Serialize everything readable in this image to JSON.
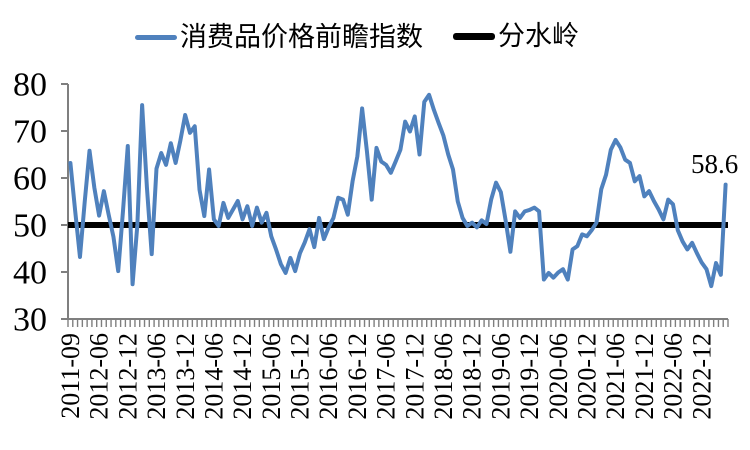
{
  "legend": {
    "series_label": "消费品价格前瞻指数",
    "reference_label": "分水岭"
  },
  "annotation": {
    "text": "58.6"
  },
  "chart_data": {
    "type": "line",
    "title": "",
    "xlabel": "",
    "ylabel": "",
    "ylim": [
      30,
      80
    ],
    "yticks": [
      30,
      40,
      50,
      60,
      70,
      80
    ],
    "grid": false,
    "legend_position": "top",
    "x_labels": [
      "2011-09",
      "2012-06",
      "2012-12",
      "2013-06",
      "2013-12",
      "2014-06",
      "2014-12",
      "2015-06",
      "2015-12",
      "2016-06",
      "2016-12",
      "2017-06",
      "2017-12",
      "2018-06",
      "2018-12",
      "2019-06",
      "2019-12",
      "2020-06",
      "2020-12",
      "2021-06",
      "2021-12",
      "2022-06",
      "2022-12"
    ],
    "points_per_label": 6,
    "series": [
      {
        "name": "消费品价格前瞻指数",
        "color": "#4F81BD",
        "values": [
          63.2,
          53.0,
          43.2,
          55.0,
          65.8,
          58.0,
          52.0,
          57.2,
          52.2,
          47.5,
          40.2,
          53.0,
          66.8,
          37.4,
          50.0,
          75.5,
          58.0,
          43.8,
          62.0,
          65.3,
          62.8,
          67.4,
          63.2,
          68.0,
          73.4,
          69.6,
          71.0,
          57.5,
          51.9,
          61.8,
          51.2,
          49.8,
          54.7,
          51.5,
          53.3,
          55.1,
          51.2,
          54.0,
          49.8,
          53.7,
          50.5,
          52.6,
          47.6,
          44.8,
          41.7,
          39.8,
          43.0,
          40.2,
          44.0,
          46.3,
          49.1,
          45.3,
          51.5,
          47.0,
          49.5,
          51.5,
          55.8,
          55.4,
          52.2,
          59.3,
          64.6,
          74.8,
          65.7,
          55.4,
          66.4,
          63.5,
          62.8,
          61.1,
          63.5,
          66.0,
          72.0,
          69.9,
          73.1,
          65.0,
          76.2,
          77.7,
          74.5,
          71.7,
          69.0,
          65.0,
          61.8,
          55.0,
          51.5,
          49.8,
          50.5,
          49.5,
          51.0,
          50.2,
          55.5,
          59.0,
          57.0,
          51.0,
          44.3,
          52.9,
          51.5,
          52.9,
          53.2,
          53.7,
          52.9,
          38.4,
          39.8,
          38.8,
          39.9,
          40.6,
          38.4,
          44.8,
          45.5,
          48.0,
          47.6,
          48.9,
          50.5,
          57.6,
          60.7,
          66.0,
          68.1,
          66.5,
          63.9,
          63.2,
          59.3,
          60.4,
          56.1,
          57.2,
          55.1,
          53.3,
          51.2,
          55.4,
          54.4,
          48.9,
          46.5,
          44.8,
          46.2,
          44.0,
          42.0,
          40.6,
          37.0,
          41.9,
          39.4,
          58.6
        ]
      }
    ],
    "reference_line": {
      "label": "分水岭",
      "value": 50,
      "color": "#000000"
    },
    "last_value": 58.6,
    "colors": {
      "series": "#4F81BD",
      "reference": "#000000",
      "axis": "#7F7F7F",
      "text": "#000000"
    }
  }
}
